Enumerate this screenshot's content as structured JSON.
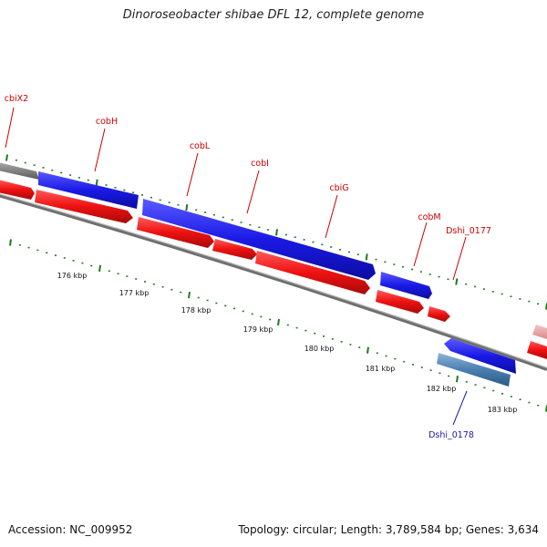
{
  "title": "Dinoroseobacter shibae DFL 12, complete genome",
  "footer": {
    "accession_label": "Accession:",
    "accession": "NC_009952",
    "topology_label": "Topology:",
    "topology": "circular",
    "length_label": "Length:",
    "length": "3,789,584 bp",
    "genes_label": "Genes:",
    "genes": "3,634"
  },
  "scale_labels": [
    "176 kbp",
    "177 kbp",
    "178 kbp",
    "179 kbp",
    "180 kbp",
    "181 kbp",
    "182 kbp",
    "183 kbp"
  ],
  "gene_labels": [
    {
      "name": "cbiX2",
      "strand": "forward"
    },
    {
      "name": "cobH",
      "strand": "forward"
    },
    {
      "name": "cobL",
      "strand": "forward"
    },
    {
      "name": "cobI",
      "strand": "forward"
    },
    {
      "name": "cbiG",
      "strand": "forward"
    },
    {
      "name": "cobM",
      "strand": "forward"
    },
    {
      "name": "Dshi_0177",
      "strand": "forward"
    },
    {
      "name": "Dshi_0178",
      "strand": "reverse"
    }
  ],
  "colors": {
    "gene_label_forward": "#cc0000",
    "gene_label_reverse": "#1a1aa0",
    "tick_green": "#1f7a1f",
    "forward_gene": "#2222ee",
    "forward_cds": "#ee1111",
    "reverse_gene": "#4a7fb0",
    "backbone": "#7a7a7a",
    "pseudo": "#e89a9a"
  }
}
